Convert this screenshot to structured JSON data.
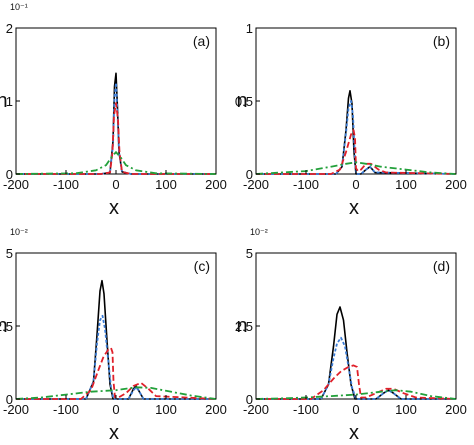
{
  "chart_data": [
    {
      "type": "line",
      "panel_label": "(a)",
      "multiplier": "10⁻¹",
      "xlabel": "x",
      "ylabel": "n",
      "xlim": [
        -200,
        200
      ],
      "ylim": [
        0,
        2
      ],
      "xticks": [
        -200,
        -100,
        0,
        100,
        200
      ],
      "yticks": [
        {
          "v": 0,
          "t": "0"
        },
        {
          "v": 1,
          "t": "1"
        },
        {
          "v": 2,
          "t": "2"
        }
      ],
      "series": [
        {
          "color": "#000000",
          "dash": "",
          "values_x": [
            -200,
            -30,
            -12,
            -6,
            -3,
            0,
            3,
            6,
            12,
            30,
            200
          ],
          "values_y": [
            0,
            0,
            0.02,
            0.45,
            1.2,
            1.38,
            0.9,
            0.3,
            0.03,
            0,
            0
          ]
        },
        {
          "color": "#3a7bd5",
          "dash": "3,2",
          "values_x": [
            -200,
            -30,
            -12,
            -6,
            -3,
            0,
            3,
            6,
            12,
            30,
            200
          ],
          "values_y": [
            0,
            0,
            0.02,
            0.4,
            1.05,
            1.25,
            0.85,
            0.3,
            0.03,
            0,
            0
          ]
        },
        {
          "color": "#e0202a",
          "dash": "6,3",
          "values_x": [
            -200,
            -30,
            -12,
            -7,
            -4,
            0,
            4,
            7,
            12,
            30,
            200
          ],
          "values_y": [
            0,
            0,
            0.02,
            0.3,
            0.8,
            0.97,
            0.75,
            0.3,
            0.03,
            0,
            0
          ]
        },
        {
          "color": "#22a03a",
          "dash": "7,3,2,3",
          "values_x": [
            -200,
            -80,
            -40,
            -20,
            -10,
            0,
            10,
            20,
            40,
            80,
            200
          ],
          "values_y": [
            0,
            0.01,
            0.05,
            0.12,
            0.22,
            0.3,
            0.22,
            0.12,
            0.05,
            0.01,
            0
          ]
        }
      ]
    },
    {
      "type": "line",
      "panel_label": "(b)",
      "multiplier": "",
      "xlabel": "x",
      "ylabel": "n",
      "xlim": [
        -200,
        200
      ],
      "ylim": [
        0,
        1
      ],
      "xticks": [
        -200,
        -100,
        0,
        100,
        200
      ],
      "yticks": [
        {
          "v": 0,
          "t": "0"
        },
        {
          "v": 0.5,
          "t": "0.5"
        },
        {
          "v": 1,
          "t": "1"
        }
      ],
      "series": [
        {
          "color": "#000000",
          "dash": "",
          "values_x": [
            -200,
            -40,
            -28,
            -20,
            -15,
            -12,
            -8,
            -4,
            0,
            10,
            20,
            28,
            38,
            200
          ],
          "values_y": [
            0,
            0,
            0.05,
            0.3,
            0.52,
            0.57,
            0.48,
            0.15,
            0,
            0,
            0.03,
            0.05,
            0.01,
            0
          ]
        },
        {
          "color": "#3a7bd5",
          "dash": "3,2",
          "values_x": [
            -200,
            -40,
            -28,
            -20,
            -15,
            -10,
            -6,
            -2,
            0,
            10,
            20,
            28,
            38,
            200
          ],
          "values_y": [
            0,
            0,
            0.05,
            0.28,
            0.45,
            0.5,
            0.4,
            0.1,
            0,
            0,
            0.03,
            0.05,
            0.01,
            0
          ]
        },
        {
          "color": "#e0202a",
          "dash": "6,3",
          "values_x": [
            -200,
            -50,
            -32,
            -20,
            -10,
            -5,
            -2,
            0,
            4,
            10,
            20,
            30,
            45,
            60,
            200
          ],
          "values_y": [
            0,
            0,
            0.03,
            0.15,
            0.27,
            0.3,
            0.25,
            0.04,
            0.02,
            0.03,
            0.07,
            0.07,
            0.03,
            0.01,
            0
          ]
        },
        {
          "color": "#22a03a",
          "dash": "7,3,2,3",
          "values_x": [
            -200,
            -150,
            -100,
            -50,
            -20,
            0,
            20,
            50,
            100,
            150,
            200
          ],
          "values_y": [
            0,
            0.01,
            0.02,
            0.05,
            0.07,
            0.08,
            0.07,
            0.05,
            0.03,
            0.01,
            0
          ]
        }
      ]
    },
    {
      "type": "line",
      "panel_label": "(c)",
      "multiplier": "10⁻²",
      "xlabel": "x",
      "ylabel": "n",
      "xlim": [
        -200,
        200
      ],
      "ylim": [
        0,
        5
      ],
      "xticks": [
        -200,
        -100,
        0,
        100,
        200
      ],
      "yticks": [
        {
          "v": 0,
          "t": "0"
        },
        {
          "v": 2.5,
          "t": "2.5"
        },
        {
          "v": 5,
          "t": "5"
        }
      ],
      "series": [
        {
          "color": "#000000",
          "dash": "",
          "values_x": [
            -200,
            -60,
            -45,
            -38,
            -32,
            -28,
            -24,
            -18,
            -12,
            -6,
            0,
            25,
            35,
            40,
            45,
            55,
            200
          ],
          "values_y": [
            0,
            0,
            0.6,
            2.2,
            3.7,
            4.05,
            3.6,
            2.0,
            0.5,
            0,
            0,
            0,
            0.35,
            0.45,
            0.3,
            0,
            0
          ]
        },
        {
          "color": "#3a7bd5",
          "dash": "3,2",
          "values_x": [
            -200,
            -60,
            -45,
            -38,
            -32,
            -27,
            -22,
            -16,
            -10,
            -5,
            0,
            25,
            35,
            40,
            45,
            55,
            200
          ],
          "values_y": [
            0,
            0,
            0.6,
            1.9,
            2.7,
            2.85,
            2.4,
            1.4,
            0.4,
            0,
            0,
            0,
            0.3,
            0.4,
            0.3,
            0,
            0
          ]
        },
        {
          "color": "#e0202a",
          "dash": "6,3",
          "values_x": [
            -200,
            -70,
            -50,
            -35,
            -25,
            -15,
            -10,
            -7,
            -5,
            -2,
            5,
            20,
            35,
            50,
            65,
            80,
            200
          ],
          "values_y": [
            0,
            0,
            0.3,
            1.0,
            1.45,
            1.7,
            1.75,
            1.6,
            0.6,
            0.05,
            0.05,
            0.2,
            0.45,
            0.55,
            0.35,
            0.1,
            0
          ]
        },
        {
          "color": "#22a03a",
          "dash": "7,3,2,3",
          "values_x": [
            -200,
            -150,
            -100,
            -50,
            0,
            40,
            70,
            100,
            150,
            200
          ],
          "values_y": [
            0,
            0.05,
            0.15,
            0.25,
            0.3,
            0.4,
            0.38,
            0.28,
            0.12,
            0
          ]
        }
      ]
    },
    {
      "type": "line",
      "panel_label": "(d)",
      "multiplier": "10⁻²",
      "xlabel": "x",
      "ylabel": "n",
      "xlim": [
        -200,
        200
      ],
      "ylim": [
        0,
        5
      ],
      "xticks": [
        -200,
        -100,
        0,
        100,
        200
      ],
      "xtick_labels": [
        "-200",
        "-100",
        "0",
        "100",
        "200"
      ],
      "yticks": [
        {
          "v": 0,
          "t": "0"
        },
        {
          "v": 2.5,
          "t": "2.5"
        },
        {
          "v": 5,
          "t": "5"
        }
      ],
      "series": [
        {
          "color": "#000000",
          "dash": "",
          "values_x": [
            -200,
            -70,
            -55,
            -45,
            -38,
            -32,
            -25,
            -18,
            -10,
            -2,
            5,
            40,
            55,
            65,
            75,
            90,
            200
          ],
          "values_y": [
            0,
            0,
            0.5,
            1.8,
            2.9,
            3.15,
            2.7,
            1.6,
            0.5,
            0,
            0,
            0,
            0.2,
            0.3,
            0.2,
            0,
            0
          ]
        },
        {
          "color": "#3a7bd5",
          "dash": "3,2",
          "values_x": [
            -200,
            -70,
            -55,
            -45,
            -38,
            -30,
            -22,
            -15,
            -8,
            0,
            5,
            40,
            55,
            65,
            75,
            90,
            200
          ],
          "values_y": [
            0,
            0,
            0.5,
            1.4,
            1.9,
            2.1,
            1.8,
            1.1,
            0.4,
            0,
            0,
            0,
            0.2,
            0.3,
            0.2,
            0,
            0
          ]
        },
        {
          "color": "#e0202a",
          "dash": "6,3",
          "values_x": [
            -200,
            -90,
            -65,
            -45,
            -30,
            -15,
            -5,
            2,
            6,
            10,
            20,
            40,
            60,
            75,
            95,
            120,
            200
          ],
          "values_y": [
            0,
            0,
            0.3,
            0.7,
            0.95,
            1.1,
            1.15,
            1.1,
            0.5,
            0.05,
            0.05,
            0.2,
            0.35,
            0.35,
            0.2,
            0.05,
            0
          ]
        },
        {
          "color": "#22a03a",
          "dash": "7,3,2,3",
          "values_x": [
            -200,
            -150,
            -100,
            -50,
            0,
            50,
            80,
            110,
            150,
            200
          ],
          "values_y": [
            0,
            0.02,
            0.05,
            0.1,
            0.15,
            0.25,
            0.3,
            0.25,
            0.1,
            0
          ]
        }
      ]
    }
  ]
}
